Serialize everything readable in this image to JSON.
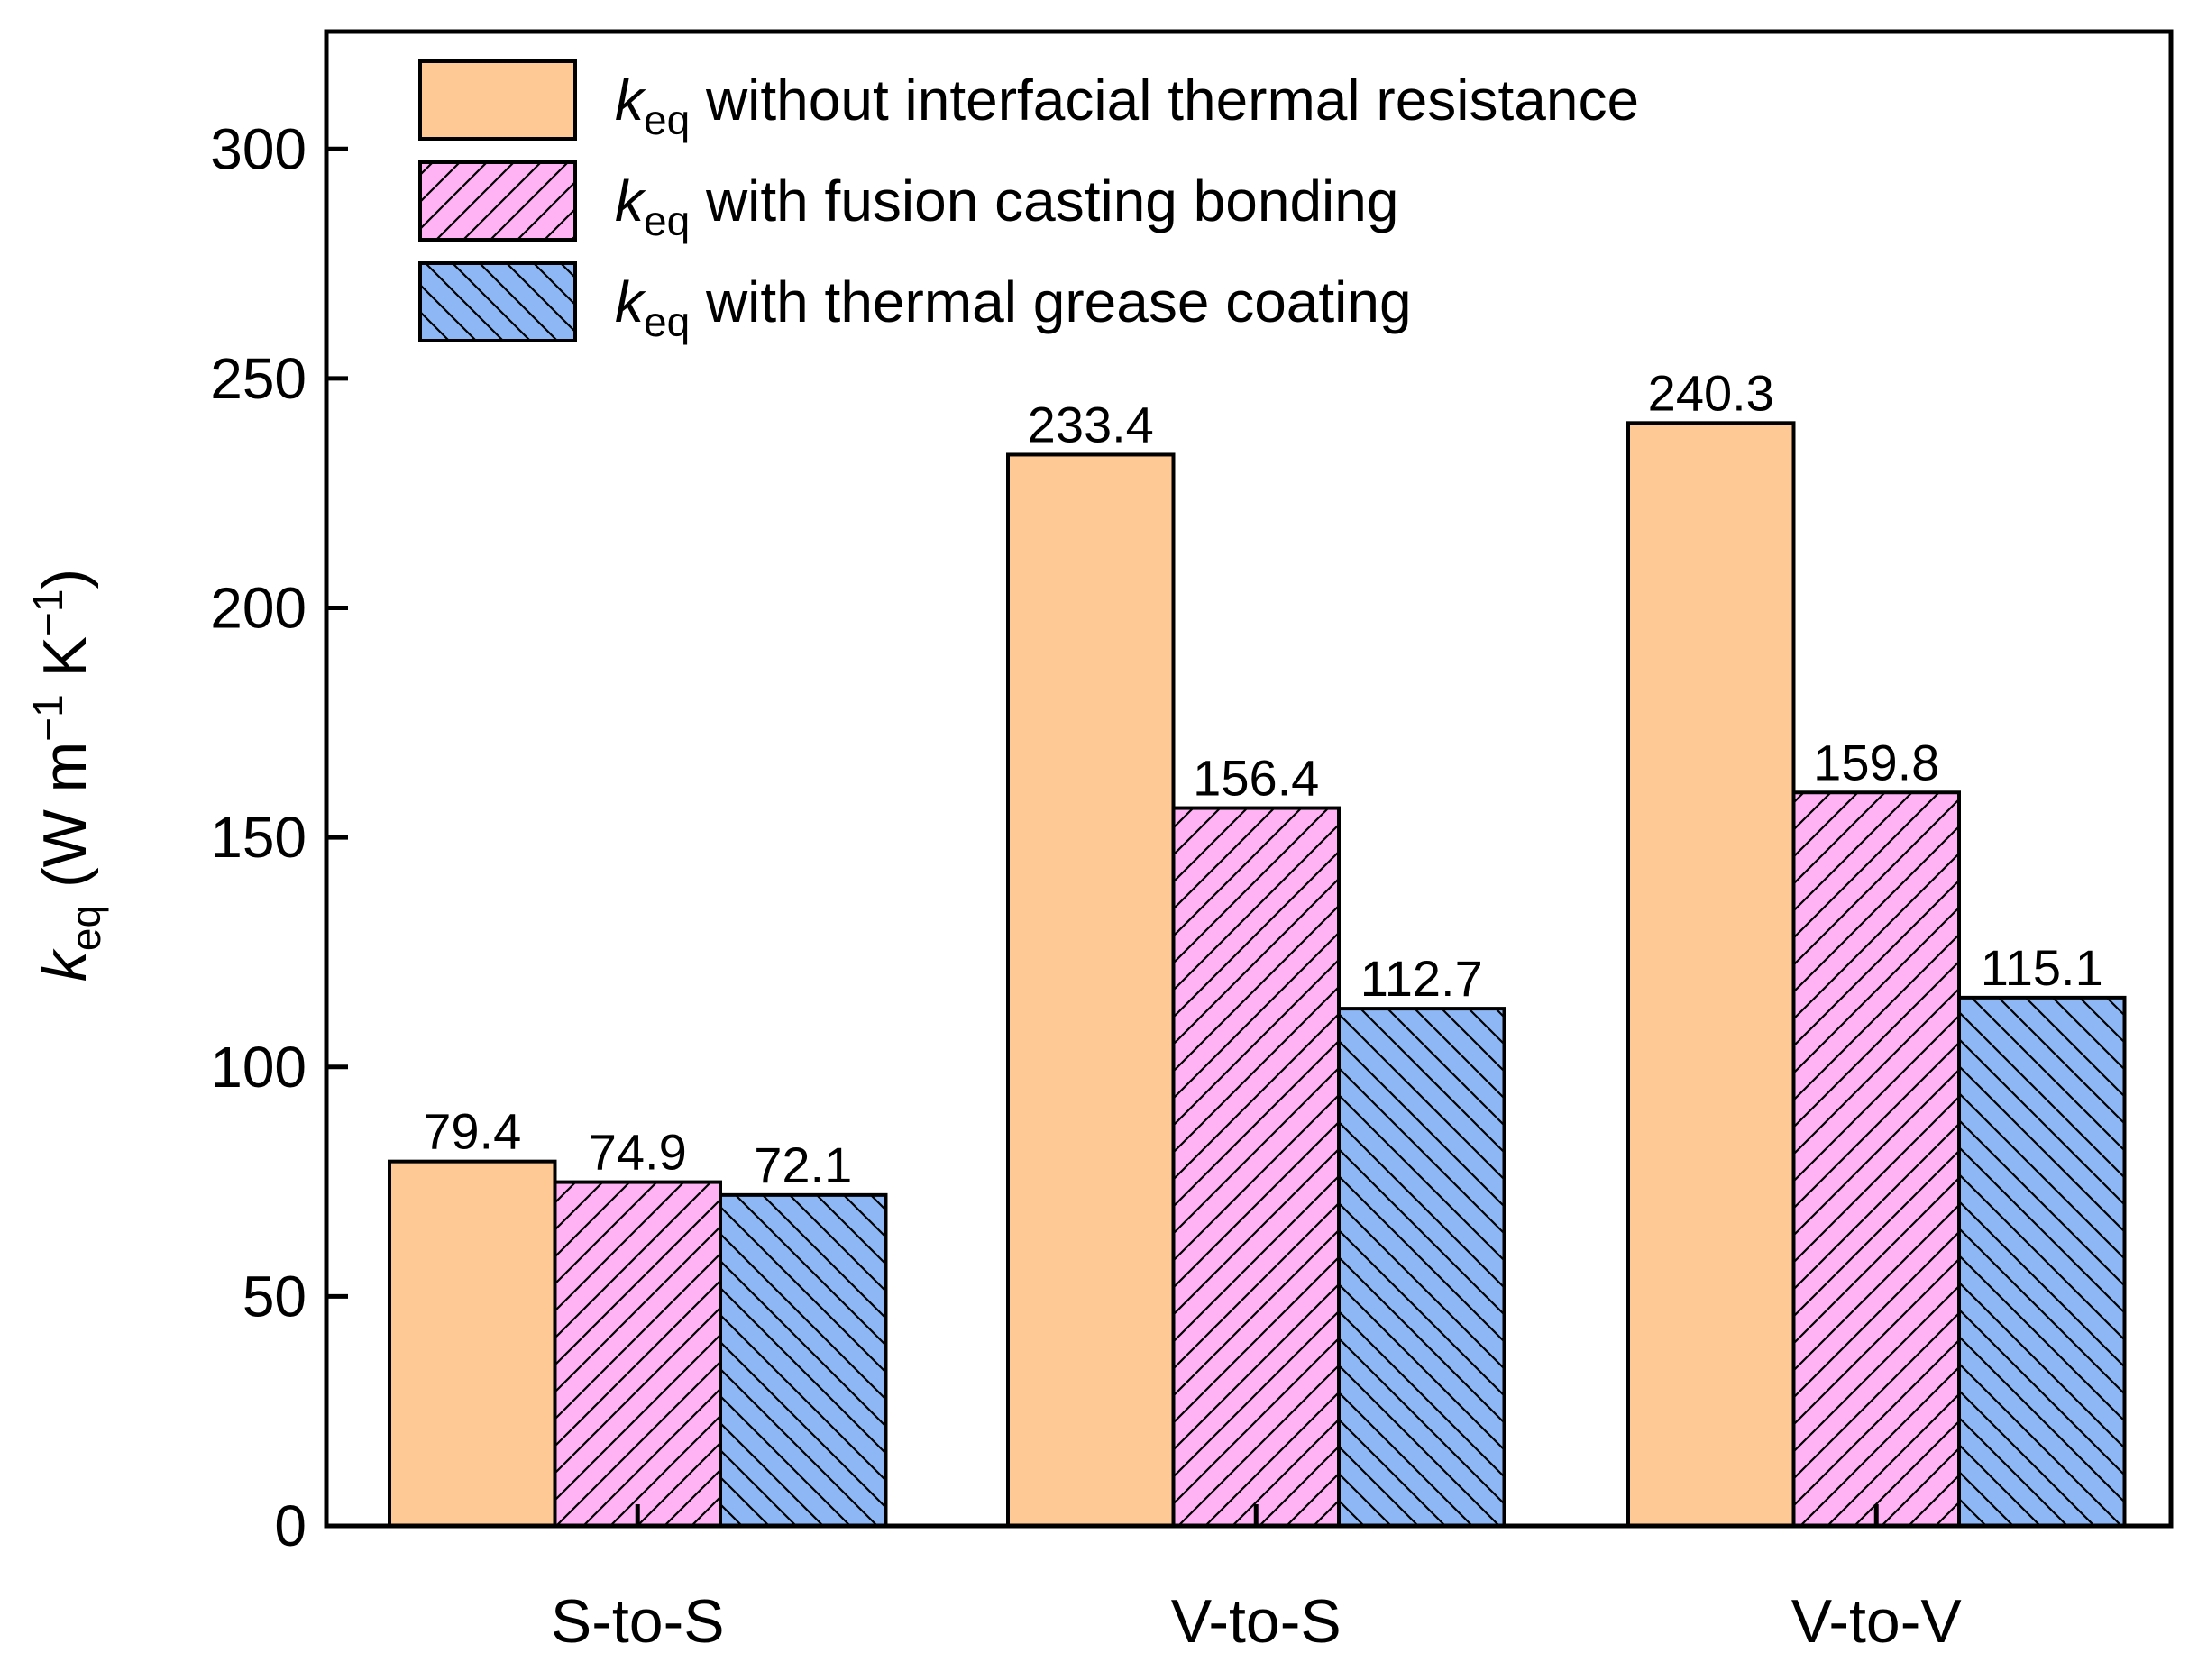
{
  "chart_data": {
    "type": "bar",
    "categories": [
      "S-to-S",
      "V-to-S",
      "V-to-V"
    ],
    "series": [
      {
        "name": "without interfacial thermal resistance",
        "symbol": "k",
        "subscript": "eq",
        "values": [
          79.4,
          233.4,
          240.3
        ],
        "labels": [
          "79.4",
          "233.4",
          "240.3"
        ],
        "color": "#FFC995",
        "pattern": "none"
      },
      {
        "name": "with fusion casting bonding",
        "symbol": "k",
        "subscript": "eq",
        "values": [
          74.9,
          156.4,
          159.8
        ],
        "labels": [
          "74.9",
          "156.4",
          "159.8"
        ],
        "color": "#FFB3F5",
        "pattern": "forward-hatch"
      },
      {
        "name": "with thermal grease coating",
        "symbol": "k",
        "subscript": "eq",
        "values": [
          72.1,
          112.7,
          115.1
        ],
        "labels": [
          "72.1",
          "112.7",
          "115.1"
        ],
        "color": "#8DB8F5",
        "pattern": "back-hatch"
      }
    ],
    "ylabel": {
      "symbol": "k",
      "subscript": "eq",
      "open": " (W m",
      "exp1": "−1",
      "mid": " K",
      "exp2": "−1",
      "close": ")"
    },
    "xlabel": "",
    "ylim": [
      0,
      325
    ],
    "yticks": [
      0,
      50,
      100,
      150,
      200,
      250,
      300
    ],
    "grid": false,
    "legend_position": "top-left"
  }
}
